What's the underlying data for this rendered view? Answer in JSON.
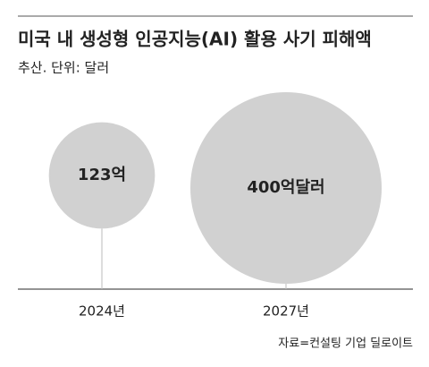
{
  "chart_data": {
    "type": "bubble",
    "title": "미국 내 생성형 인공지능(AI) 활용 사기 피해액",
    "subtitle": "추산. 단위: 달러",
    "categories": [
      "2024년",
      "2027년"
    ],
    "values": [
      123,
      400
    ],
    "value_labels": [
      "123억",
      "400억달러"
    ],
    "color": "#d1d1d1",
    "source": "자료=컨설팅 기업 딜로이트"
  }
}
